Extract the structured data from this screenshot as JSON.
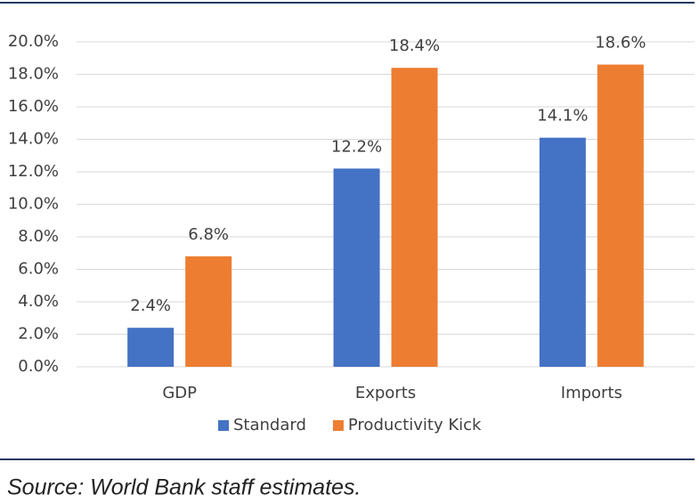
{
  "chart_data": {
    "type": "bar",
    "categories": [
      "GDP",
      "Exports",
      "Imports"
    ],
    "series": [
      {
        "name": "Standard",
        "color": "#4472c4",
        "values": [
          2.4,
          12.2,
          14.1
        ],
        "value_labels": [
          "2.4%",
          "12.2%",
          "14.1%"
        ]
      },
      {
        "name": "Productivity Kick",
        "color": "#ed7d31",
        "values": [
          6.8,
          18.4,
          18.6
        ],
        "value_labels": [
          "6.8%",
          "18.4%",
          "18.6%"
        ]
      }
    ],
    "ylim": [
      0,
      20
    ],
    "yticks": [
      {
        "value": 0,
        "label": "0.0%"
      },
      {
        "value": 2,
        "label": "2.0%"
      },
      {
        "value": 4,
        "label": "4.0%"
      },
      {
        "value": 6,
        "label": "6.0%"
      },
      {
        "value": 8,
        "label": "8.0%"
      },
      {
        "value": 10,
        "label": "10.0%"
      },
      {
        "value": 12,
        "label": "12.0%"
      },
      {
        "value": 14,
        "label": "14.0%"
      },
      {
        "value": 16,
        "label": "16.0%"
      },
      {
        "value": 18,
        "label": "18.0%"
      },
      {
        "value": 20,
        "label": "20.0%"
      }
    ],
    "grid": true,
    "legend": "bottom",
    "source": "Source: World Bank staff estimates."
  }
}
